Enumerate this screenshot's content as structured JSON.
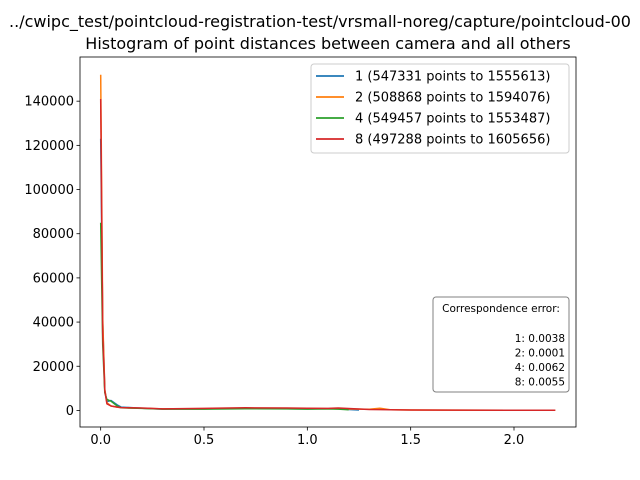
{
  "chart_data": {
    "type": "line",
    "title": "../cwipc_test/pointcloud-registration-test/vrsmall-noreg/capture/pointcloud-00",
    "subtitle": "Histogram of point distances between camera and all others",
    "xlabel": "",
    "ylabel": "",
    "xlim": [
      -0.1,
      2.3
    ],
    "ylim": [
      -7500,
      160000
    ],
    "x_ticks": [
      "0.0",
      "0.5",
      "1.0",
      "1.5",
      "2.0"
    ],
    "y_ticks": [
      "0",
      "20000",
      "40000",
      "60000",
      "80000",
      "100000",
      "120000",
      "140000"
    ],
    "legend_position": "top-right",
    "grid": false,
    "series": [
      {
        "name": "1 (547331 points to 1555613)",
        "color": "#1f77b4",
        "x": [
          0.0,
          0.01,
          0.02,
          0.03,
          0.05,
          0.08,
          0.1,
          0.2,
          0.3,
          0.5,
          0.7,
          0.9,
          1.0,
          1.1,
          1.15,
          1.2,
          1.25
        ],
        "y": [
          123000,
          40000,
          9000,
          4000,
          4500,
          2500,
          1500,
          1000,
          600,
          700,
          900,
          800,
          700,
          800,
          900,
          400,
          200
        ]
      },
      {
        "name": "2 (508868 points to 1594076)",
        "color": "#ff7f0e",
        "x": [
          0.0,
          0.01,
          0.02,
          0.03,
          0.05,
          0.08,
          0.1,
          0.2,
          0.3,
          0.5,
          0.7,
          0.9,
          1.1,
          1.3,
          1.35,
          1.4,
          1.5,
          1.7,
          2.0,
          2.2
        ],
        "y": [
          152000,
          42000,
          9500,
          3500,
          2000,
          1500,
          1200,
          1000,
          700,
          700,
          1000,
          900,
          800,
          500,
          1000,
          300,
          200,
          150,
          100,
          50
        ]
      },
      {
        "name": "4 (549457 points to 1553487)",
        "color": "#2ca02c",
        "x": [
          0.0,
          0.01,
          0.02,
          0.03,
          0.05,
          0.08,
          0.1,
          0.2,
          0.3,
          0.5,
          0.7,
          0.9,
          1.0,
          1.1,
          1.15,
          1.2
        ],
        "y": [
          85000,
          30000,
          8000,
          5000,
          4200,
          2000,
          1200,
          900,
          600,
          600,
          800,
          700,
          600,
          700,
          600,
          300
        ]
      },
      {
        "name": "8 (497288 points to 1605656)",
        "color": "#d62728",
        "x": [
          0.0,
          0.01,
          0.02,
          0.03,
          0.05,
          0.08,
          0.1,
          0.2,
          0.3,
          0.5,
          0.7,
          0.9,
          1.0,
          1.1,
          1.15,
          1.3,
          1.5,
          1.7,
          2.0,
          2.2
        ],
        "y": [
          141000,
          35000,
          9000,
          3000,
          2000,
          1500,
          1300,
          1100,
          700,
          900,
          1200,
          1100,
          1000,
          900,
          1100,
          400,
          200,
          150,
          100,
          50
        ]
      }
    ],
    "annotation": {
      "title": "Correspondence error:",
      "lines": [
        "1: 0.0038",
        "2: 0.0001",
        "4: 0.0062",
        "8: 0.0055"
      ]
    }
  }
}
